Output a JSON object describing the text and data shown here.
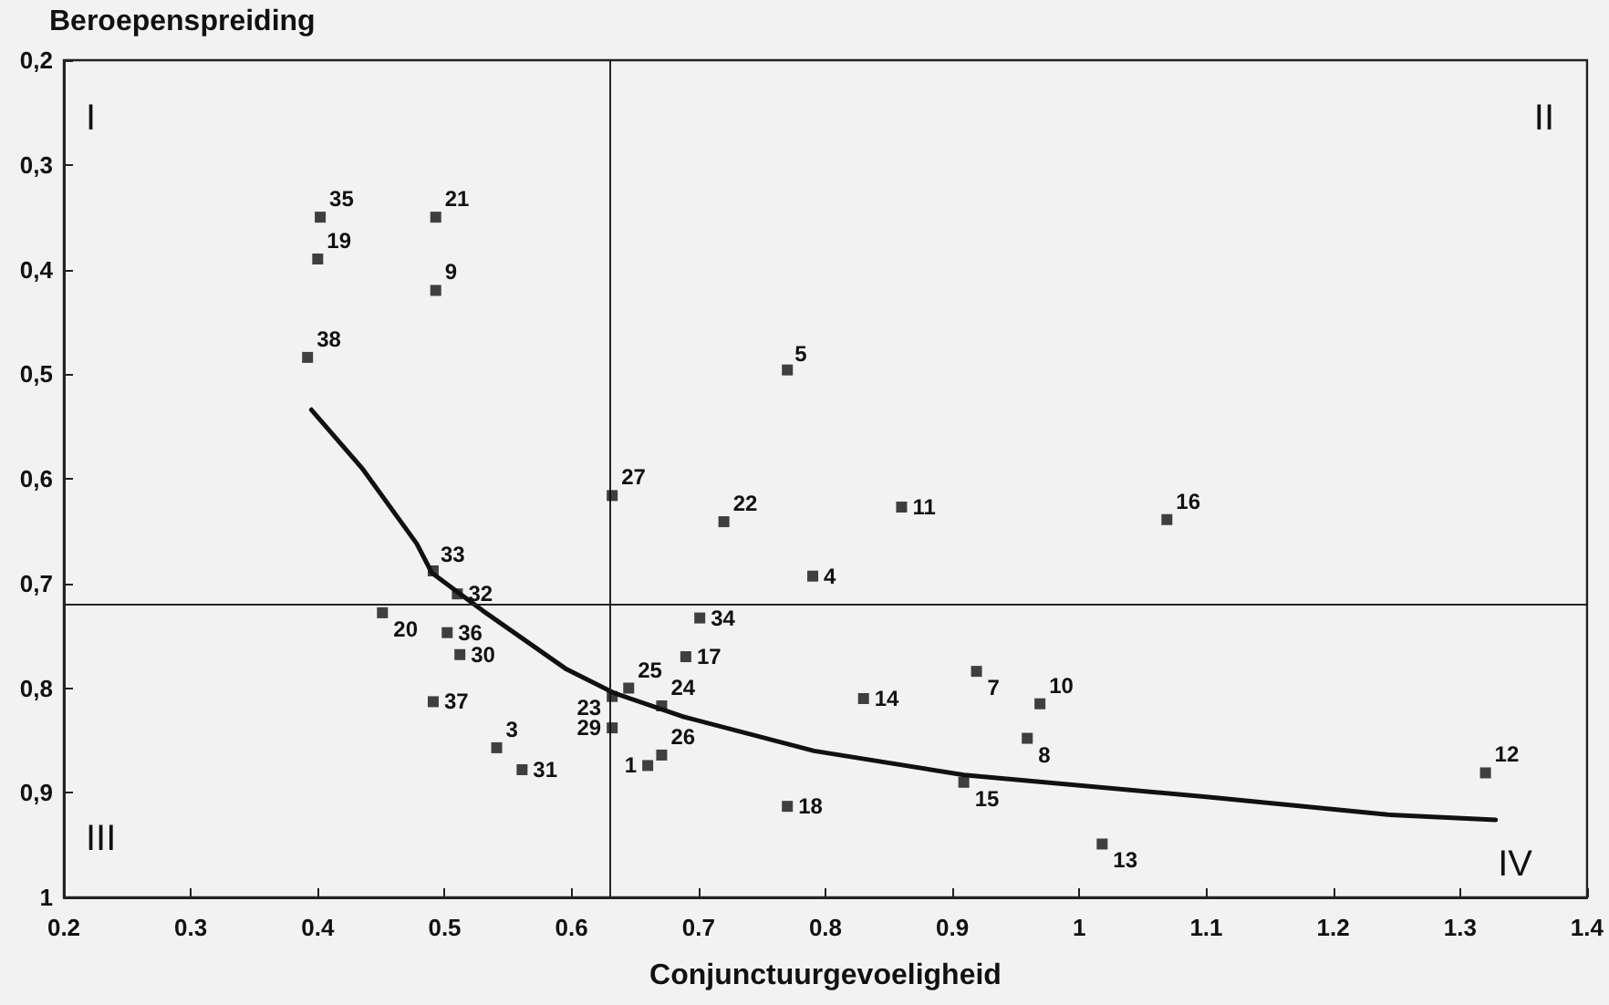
{
  "chart_data": {
    "type": "scatter",
    "xlabel": "Conjunctuurgevoeligheid",
    "ylabel": "Beroepenspreiding",
    "xlim": [
      0.2,
      1.4
    ],
    "xticks": [
      0.2,
      0.3,
      0.4,
      0.5,
      0.6,
      0.7,
      0.8,
      0.9,
      1,
      1.1,
      1.2,
      1.3,
      1.4
    ],
    "ylim": [
      1,
      0.2
    ],
    "yticks": [
      {
        "value": 0.2,
        "label": "0,2"
      },
      {
        "value": 0.3,
        "label": "0,3"
      },
      {
        "value": 0.4,
        "label": "0,4"
      },
      {
        "value": 0.5,
        "label": "0,5"
      },
      {
        "value": 0.6,
        "label": "0,6"
      },
      {
        "value": 0.7,
        "label": "0,7"
      },
      {
        "value": 0.8,
        "label": "0,8"
      },
      {
        "value": 0.9,
        "label": "0,9"
      },
      {
        "value": 1,
        "label": "1"
      }
    ],
    "series": [
      {
        "type": "scatter",
        "color": "#111111",
        "marker": "square",
        "x": [
          0.402,
          0.4,
          0.493,
          0.493,
          0.392,
          0.77,
          0.632,
          0.72,
          0.86,
          1.069,
          0.79,
          0.491,
          0.51,
          0.451,
          0.502,
          0.512,
          0.491,
          0.541,
          0.561,
          0.632,
          0.645,
          0.632,
          0.671,
          0.671,
          0.66,
          0.701,
          0.69,
          0.77,
          0.83,
          0.919,
          0.969,
          0.959,
          0.909,
          1.018,
          1.32
        ],
        "values": [
          0.35,
          0.39,
          0.35,
          0.42,
          0.484,
          0.496,
          0.616,
          0.641,
          0.627,
          0.639,
          0.693,
          0.688,
          0.71,
          0.728,
          0.747,
          0.768,
          0.813,
          0.857,
          0.878,
          0.808,
          0.8,
          0.838,
          0.817,
          0.864,
          0.874,
          0.733,
          0.77,
          0.913,
          0.81,
          0.784,
          0.815,
          0.848,
          0.89,
          0.949,
          0.881
        ]
      },
      {
        "type": "line",
        "color": "#111111",
        "marker": "none",
        "x": [
          0.395,
          0.435,
          0.478,
          0.49,
          0.53,
          0.596,
          0.634,
          0.687,
          0.791,
          0.909,
          1.1,
          1.243,
          1.328
        ],
        "values": [
          0.534,
          0.59,
          0.662,
          0.69,
          0.726,
          0.782,
          0.805,
          0.827,
          0.86,
          0.883,
          0.904,
          0.921,
          0.926
        ]
      }
    ],
    "ref_lines": [
      {
        "axis": "x",
        "value": 0.63,
        "color": "#222222"
      },
      {
        "axis": "y",
        "value": 0.72,
        "color": "#222222"
      }
    ],
    "annotations": [
      "I",
      "II",
      "III",
      "IV",
      {
        "text": "35",
        "x": 0.402,
        "y": 0.35
      },
      {
        "text": "19",
        "x": 0.4,
        "y": 0.39
      },
      {
        "text": "21",
        "x": 0.493,
        "y": 0.35
      },
      {
        "text": "9",
        "x": 0.493,
        "y": 0.42
      },
      {
        "text": "38",
        "x": 0.392,
        "y": 0.484
      },
      {
        "text": "5",
        "x": 0.77,
        "y": 0.496
      },
      {
        "text": "27",
        "x": 0.632,
        "y": 0.616
      },
      {
        "text": "22",
        "x": 0.72,
        "y": 0.641
      },
      {
        "text": "11",
        "x": 0.86,
        "y": 0.627
      },
      {
        "text": "16",
        "x": 1.069,
        "y": 0.639
      },
      {
        "text": "4",
        "x": 0.79,
        "y": 0.693
      },
      {
        "text": "33",
        "x": 0.491,
        "y": 0.688
      },
      {
        "text": "32",
        "x": 0.51,
        "y": 0.71
      },
      {
        "text": "20",
        "x": 0.451,
        "y": 0.728
      },
      {
        "text": "36",
        "x": 0.502,
        "y": 0.747
      },
      {
        "text": "30",
        "x": 0.512,
        "y": 0.768
      },
      {
        "text": "37",
        "x": 0.491,
        "y": 0.813
      },
      {
        "text": "3",
        "x": 0.541,
        "y": 0.857
      },
      {
        "text": "31",
        "x": 0.561,
        "y": 0.878
      },
      {
        "text": "23",
        "x": 0.632,
        "y": 0.808
      },
      {
        "text": "25",
        "x": 0.645,
        "y": 0.8
      },
      {
        "text": "29",
        "x": 0.632,
        "y": 0.838
      },
      {
        "text": "24",
        "x": 0.671,
        "y": 0.817
      },
      {
        "text": "26",
        "x": 0.671,
        "y": 0.864
      },
      {
        "text": "1",
        "x": 0.66,
        "y": 0.874
      },
      {
        "text": "34",
        "x": 0.701,
        "y": 0.733
      },
      {
        "text": "17",
        "x": 0.69,
        "y": 0.77
      },
      {
        "text": "18",
        "x": 0.77,
        "y": 0.913
      },
      {
        "text": "14",
        "x": 0.83,
        "y": 0.81
      },
      {
        "text": "7",
        "x": 0.919,
        "y": 0.784
      },
      {
        "text": "10",
        "x": 0.969,
        "y": 0.815
      },
      {
        "text": "8",
        "x": 0.959,
        "y": 0.848
      },
      {
        "text": "15",
        "x": 0.909,
        "y": 0.89
      },
      {
        "text": "13",
        "x": 1.018,
        "y": 0.949
      },
      {
        "text": "12",
        "x": 1.32,
        "y": 0.881
      }
    ]
  }
}
